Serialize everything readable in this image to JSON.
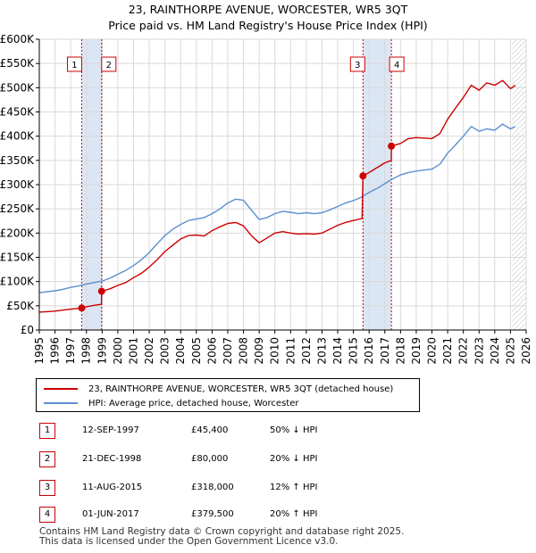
{
  "title_line1": "23, RAINTHORPE AVENUE, WORCESTER, WR5 3QT",
  "title_line2": "Price paid vs. HM Land Registry's House Price Index (HPI)",
  "colors": {
    "price": "#cc0000",
    "hpi": "#5b8fd0",
    "shade": "#dbe6f5",
    "grid": "#d9d9d9"
  },
  "chart_data": {
    "type": "line",
    "xlim": [
      1995,
      2026
    ],
    "ylim": [
      0,
      600000
    ],
    "y_ticks": [
      0,
      50000,
      100000,
      150000,
      200000,
      250000,
      300000,
      350000,
      400000,
      450000,
      500000,
      550000,
      600000
    ],
    "y_tick_labels": [
      "£0",
      "£50K",
      "£100K",
      "£150K",
      "£200K",
      "£250K",
      "£300K",
      "£350K",
      "£400K",
      "£450K",
      "£500K",
      "£550K",
      "£600K"
    ],
    "x_ticks": [
      1995,
      1996,
      1997,
      1998,
      1999,
      2000,
      2001,
      2002,
      2003,
      2004,
      2005,
      2006,
      2007,
      2008,
      2009,
      2010,
      2011,
      2012,
      2013,
      2014,
      2015,
      2016,
      2017,
      2018,
      2019,
      2020,
      2021,
      2022,
      2023,
      2024,
      2025,
      2026
    ],
    "grid": true,
    "shaded_periods": [
      [
        1997.7,
        1998.97
      ],
      [
        2015.61,
        2017.42
      ]
    ],
    "hatched_from": 2025.1,
    "series": [
      {
        "name": "23, RAINTHORPE AVENUE, WORCESTER, WR5 3QT (detached house)",
        "color": "#cc0000",
        "x": [
          1995,
          1995.5,
          1996,
          1996.5,
          1997,
          1997.5,
          1997.7,
          1998,
          1998.5,
          1998.96,
          1998.97,
          1999.5,
          2000,
          2000.5,
          2001,
          2001.5,
          2002,
          2002.5,
          2003,
          2003.5,
          2004,
          2004.5,
          2005,
          2005.5,
          2006,
          2006.5,
          2007,
          2007.5,
          2008,
          2008.5,
          2009,
          2009.5,
          2010,
          2010.5,
          2011,
          2011.5,
          2012,
          2012.5,
          2013,
          2013.5,
          2014,
          2014.5,
          2015,
          2015.55,
          2015.61,
          2016,
          2016.5,
          2017,
          2017.41,
          2017.42,
          2018,
          2018.5,
          2019,
          2019.5,
          2020,
          2020.5,
          2021,
          2021.5,
          2022,
          2022.5,
          2023,
          2023.5,
          2024,
          2024.5,
          2025,
          2025.3
        ],
        "values": [
          37000,
          38000,
          39000,
          41000,
          43000,
          44500,
          45400,
          48000,
          51000,
          53000,
          80000,
          85000,
          92000,
          98000,
          108000,
          117000,
          130000,
          145000,
          162000,
          175000,
          188000,
          195000,
          196000,
          194000,
          205000,
          213000,
          220000,
          222000,
          215000,
          195000,
          180000,
          190000,
          200000,
          203000,
          200000,
          198000,
          199000,
          198000,
          200000,
          208000,
          216000,
          222000,
          226000,
          230000,
          318000,
          325000,
          335000,
          345000,
          350000,
          379500,
          385000,
          395000,
          397000,
          396000,
          395000,
          405000,
          435000,
          458000,
          480000,
          505000,
          495000,
          510000,
          505000,
          515000,
          498000,
          505000
        ]
      },
      {
        "name": "HPI: Average price, detached house, Worcester",
        "color": "#5b8fd0",
        "x": [
          1995,
          1995.5,
          1996,
          1996.5,
          1997,
          1997.5,
          1998,
          1998.5,
          1999,
          1999.5,
          2000,
          2000.5,
          2001,
          2001.5,
          2002,
          2002.5,
          2003,
          2003.5,
          2004,
          2004.5,
          2005,
          2005.5,
          2006,
          2006.5,
          2007,
          2007.5,
          2008,
          2008.5,
          2009,
          2009.5,
          2010,
          2010.5,
          2011,
          2011.5,
          2012,
          2012.5,
          2013,
          2013.5,
          2014,
          2014.5,
          2015,
          2015.5,
          2016,
          2016.5,
          2017,
          2017.5,
          2018,
          2018.5,
          2019,
          2019.5,
          2020,
          2020.5,
          2021,
          2021.5,
          2022,
          2022.5,
          2023,
          2023.5,
          2024,
          2024.5,
          2025,
          2025.3
        ],
        "values": [
          77000,
          79000,
          81000,
          84000,
          88000,
          91000,
          95000,
          98000,
          101000,
          107000,
          115000,
          123000,
          133000,
          145000,
          160000,
          178000,
          195000,
          208000,
          218000,
          226000,
          229000,
          232000,
          240000,
          250000,
          262000,
          270000,
          268000,
          248000,
          228000,
          232000,
          240000,
          245000,
          243000,
          240000,
          242000,
          240000,
          242000,
          248000,
          255000,
          262000,
          267000,
          274000,
          284000,
          292000,
          302000,
          312000,
          320000,
          325000,
          328000,
          330000,
          332000,
          342000,
          365000,
          382000,
          400000,
          420000,
          410000,
          415000,
          412000,
          425000,
          415000,
          420000
        ]
      }
    ],
    "sales": [
      {
        "label": "1",
        "x": 1997.7,
        "value": 45400
      },
      {
        "label": "2",
        "x": 1998.97,
        "value": 80000
      },
      {
        "label": "3",
        "x": 2015.61,
        "value": 318000
      },
      {
        "label": "4",
        "x": 2017.42,
        "value": 379500
      }
    ],
    "annotation_labels": [
      "1",
      "2",
      "3",
      "4"
    ]
  },
  "legend": {
    "price_label": "23, RAINTHORPE AVENUE, WORCESTER, WR5 3QT (detached house)",
    "hpi_label": "HPI: Average price, detached house, Worcester"
  },
  "transactions": [
    {
      "num": "1",
      "date": "12-SEP-1997",
      "price": "£45,400",
      "hpi": "50% ↓ HPI"
    },
    {
      "num": "2",
      "date": "21-DEC-1998",
      "price": "£80,000",
      "hpi": "20% ↓ HPI"
    },
    {
      "num": "3",
      "date": "11-AUG-2015",
      "price": "£318,000",
      "hpi": "12% ↑ HPI"
    },
    {
      "num": "4",
      "date": "01-JUN-2017",
      "price": "£379,500",
      "hpi": "20% ↑ HPI"
    }
  ],
  "footer_line1": "Contains HM Land Registry data © Crown copyright and database right 2025.",
  "footer_line2": "This data is licensed under the Open Government Licence v3.0."
}
